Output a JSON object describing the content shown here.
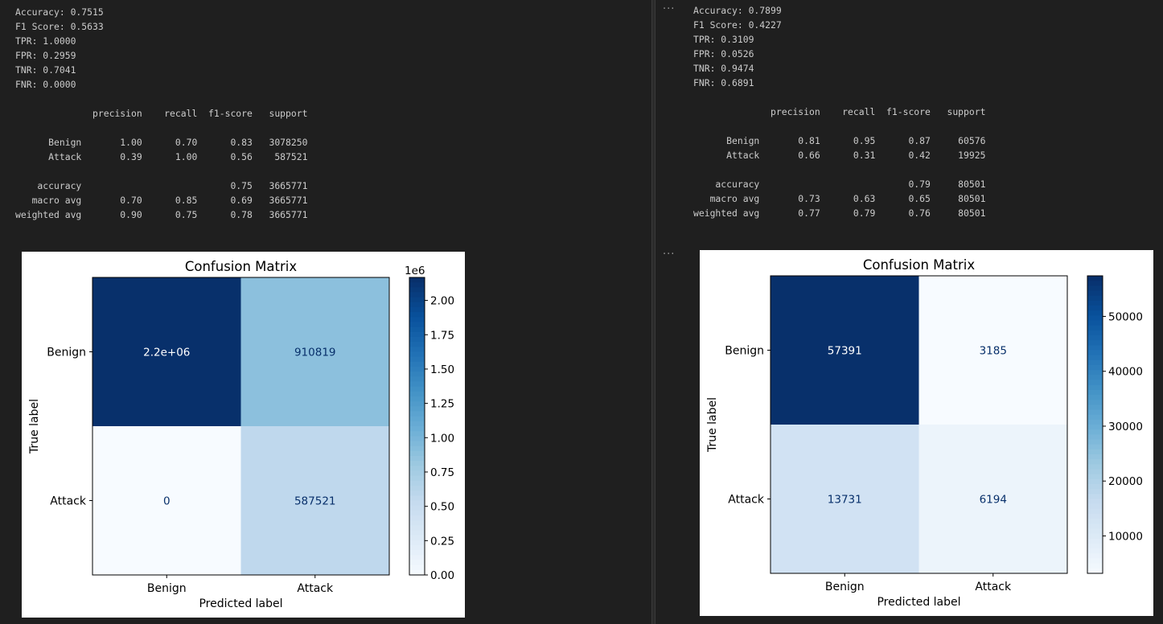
{
  "left": {
    "metrics": [
      "Accuracy: 0.7515",
      "F1 Score: 0.5633",
      "TPR: 1.0000",
      "FPR: 0.2959",
      "TNR: 0.7041",
      "FNR: 0.0000"
    ],
    "report": [
      "              precision    recall  f1-score   support",
      "",
      "      Benign       1.00      0.70      0.83   3078250",
      "      Attack       0.39      1.00      0.56    587521",
      "",
      "    accuracy                           0.75   3665771",
      "   macro avg       0.70      0.85      0.69   3665771",
      "weighted avg       0.90      0.75      0.78   3665771"
    ]
  },
  "right": {
    "ellipsis_top": "···",
    "ellipsis_fig": "···",
    "metrics": [
      "Accuracy: 0.7899",
      "F1 Score: 0.4227",
      "TPR: 0.3109",
      "FPR: 0.0526",
      "TNR: 0.9474",
      "FNR: 0.6891"
    ],
    "report": [
      "              precision    recall  f1-score   support",
      "",
      "      Benign       0.81      0.95      0.87     60576",
      "      Attack       0.66      0.31      0.42     19925",
      "",
      "    accuracy                           0.79     80501",
      "   macro avg       0.73      0.63      0.65     80501",
      "weighted avg       0.77      0.79      0.76     80501"
    ]
  },
  "chart_data": [
    {
      "type": "heatmap",
      "title": "Confusion Matrix",
      "xlabel": "Predicted label",
      "ylabel": "True label",
      "x_categories": [
        "Benign",
        "Attack"
      ],
      "y_categories": [
        "Benign",
        "Attack"
      ],
      "values": [
        [
          2167431,
          910819
        ],
        [
          0,
          587521
        ]
      ],
      "cell_labels": [
        [
          "2.2e+06",
          "910819"
        ],
        [
          "0",
          "587521"
        ]
      ],
      "colormap": "Blues",
      "colorbar": {
        "min": 0,
        "max": 2167431,
        "ticks": [
          0,
          0.25,
          0.5,
          0.75,
          1.0,
          1.25,
          1.5,
          1.75,
          2.0
        ],
        "tick_labels": [
          "0.00",
          "0.25",
          "0.50",
          "0.75",
          "1.00",
          "1.25",
          "1.50",
          "1.75",
          "2.00"
        ],
        "multiplier": "1e6",
        "scale": 1000000
      }
    },
    {
      "type": "heatmap",
      "title": "Confusion Matrix",
      "xlabel": "Predicted label",
      "ylabel": "True label",
      "x_categories": [
        "Benign",
        "Attack"
      ],
      "y_categories": [
        "Benign",
        "Attack"
      ],
      "values": [
        [
          57391,
          3185
        ],
        [
          13731,
          6194
        ]
      ],
      "cell_labels": [
        [
          "57391",
          "3185"
        ],
        [
          "13731",
          "6194"
        ]
      ],
      "colormap": "Blues",
      "colorbar": {
        "min": 3185,
        "max": 57391,
        "ticks": [
          10000,
          20000,
          30000,
          40000,
          50000
        ],
        "tick_labels": [
          "10000",
          "20000",
          "30000",
          "40000",
          "50000"
        ],
        "multiplier": "",
        "scale": 1
      }
    }
  ]
}
